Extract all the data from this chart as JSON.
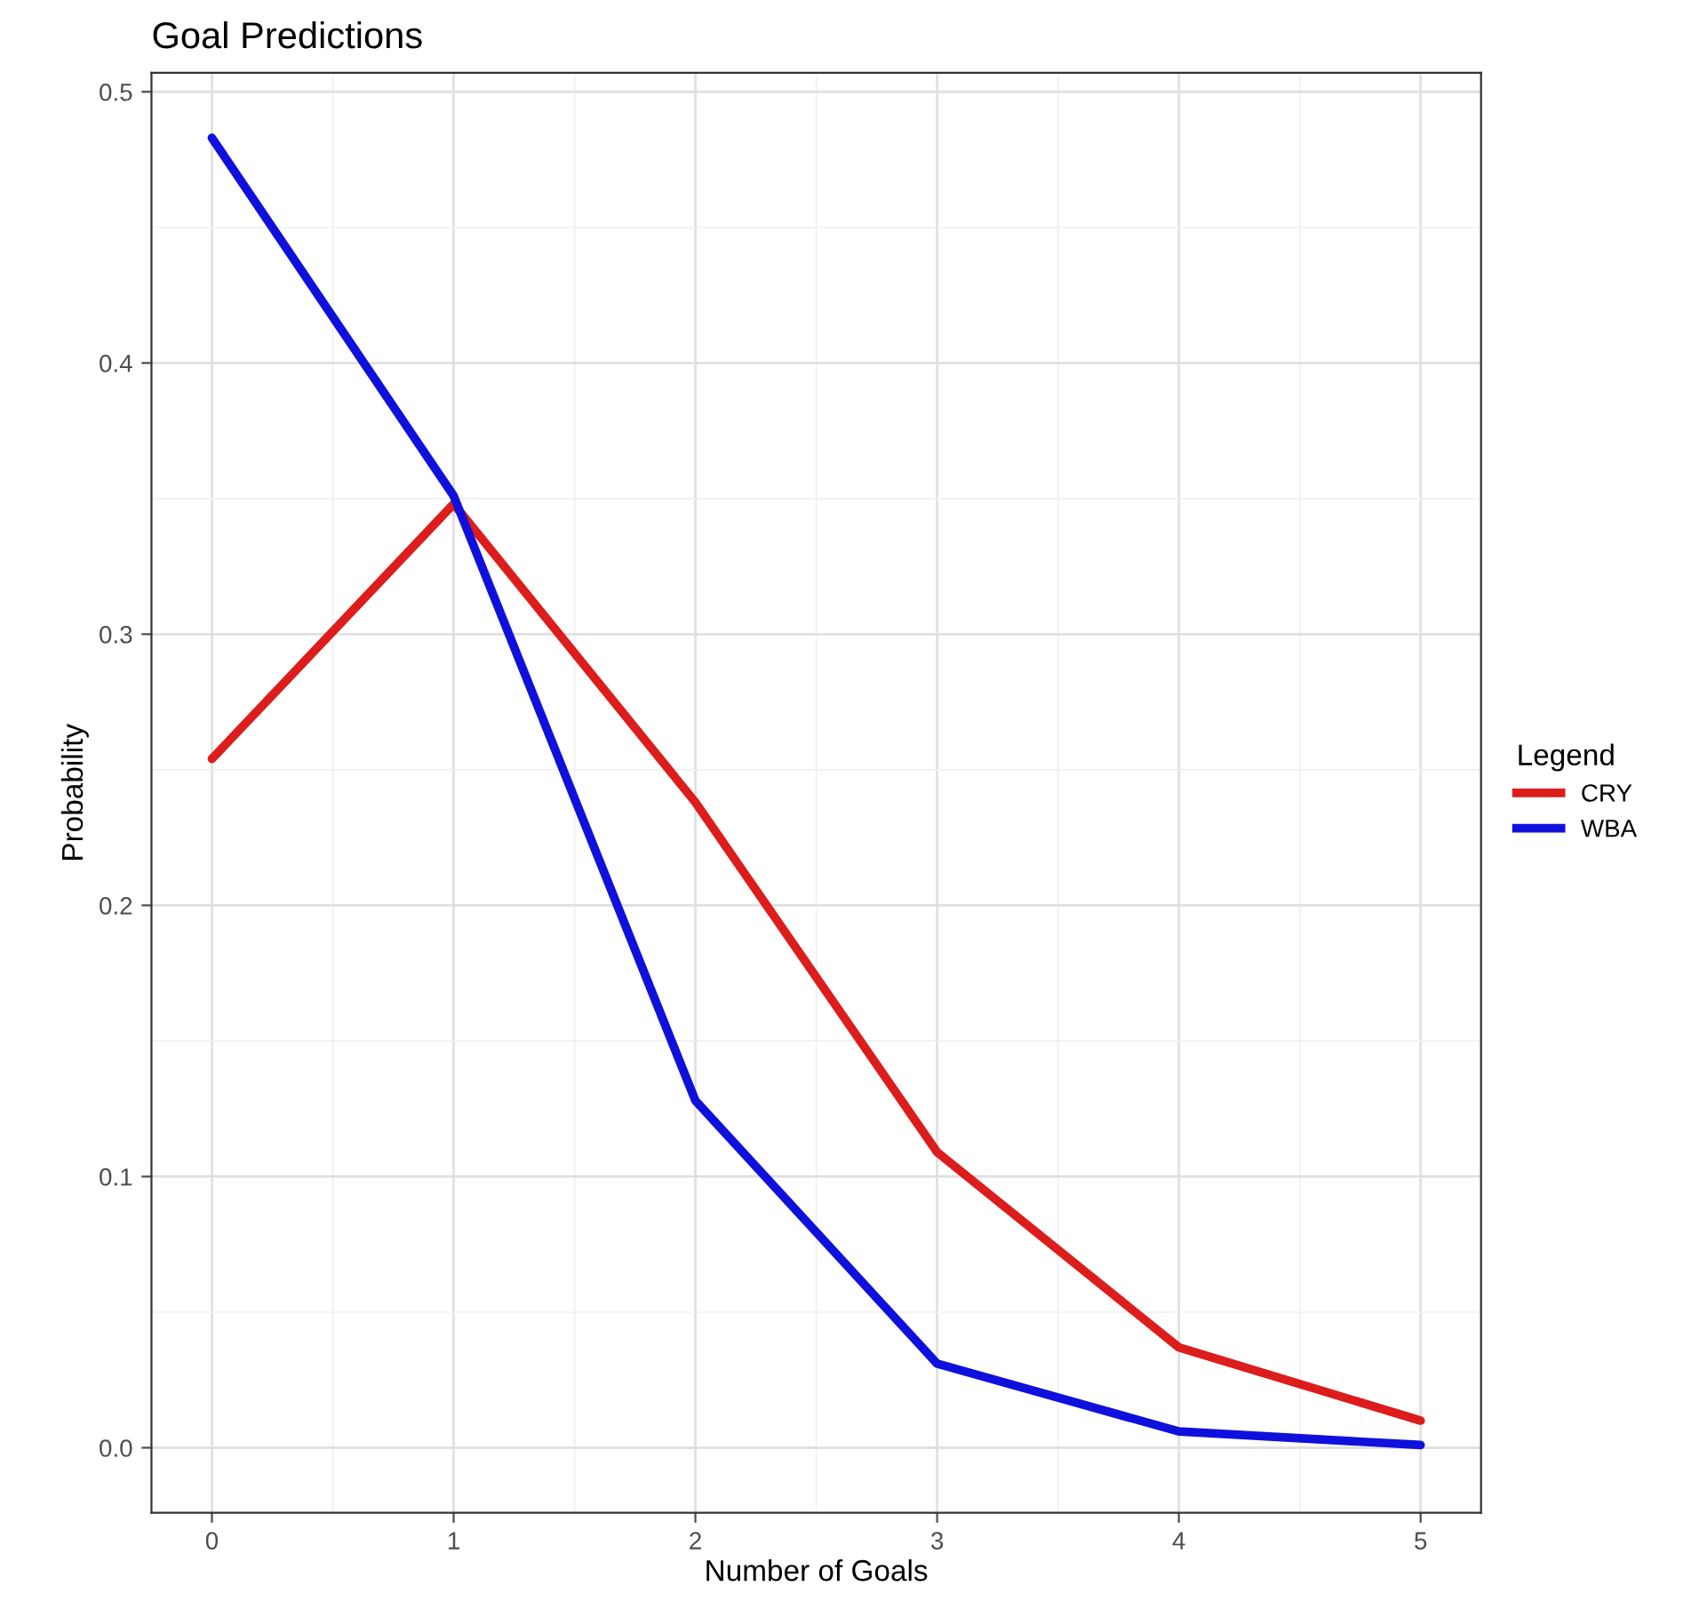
{
  "chart_data": {
    "type": "line",
    "title": "Goal Predictions",
    "xlabel": "Number of Goals",
    "ylabel": "Probability",
    "legend_title": "Legend",
    "x": [
      0,
      1,
      2,
      3,
      4,
      5
    ],
    "series": [
      {
        "name": "CRY",
        "color": "#dd1c1c",
        "values": [
          0.254,
          0.348,
          0.238,
          0.109,
          0.037,
          0.01
        ]
      },
      {
        "name": "WBA",
        "color": "#1010dd",
        "values": [
          0.483,
          0.351,
          0.128,
          0.031,
          0.006,
          0.001
        ]
      }
    ],
    "xlim": [
      -0.25,
      5.25
    ],
    "ylim": [
      -0.024,
      0.507
    ],
    "xticks": [
      0,
      1,
      2,
      3,
      4,
      5
    ],
    "yticks": [
      {
        "value": 0,
        "label": "0.0"
      },
      0.1,
      0.2,
      0.3,
      0.4,
      0.5
    ],
    "grid": true,
    "legend": "right",
    "marker": "none",
    "line_style": "solid"
  }
}
